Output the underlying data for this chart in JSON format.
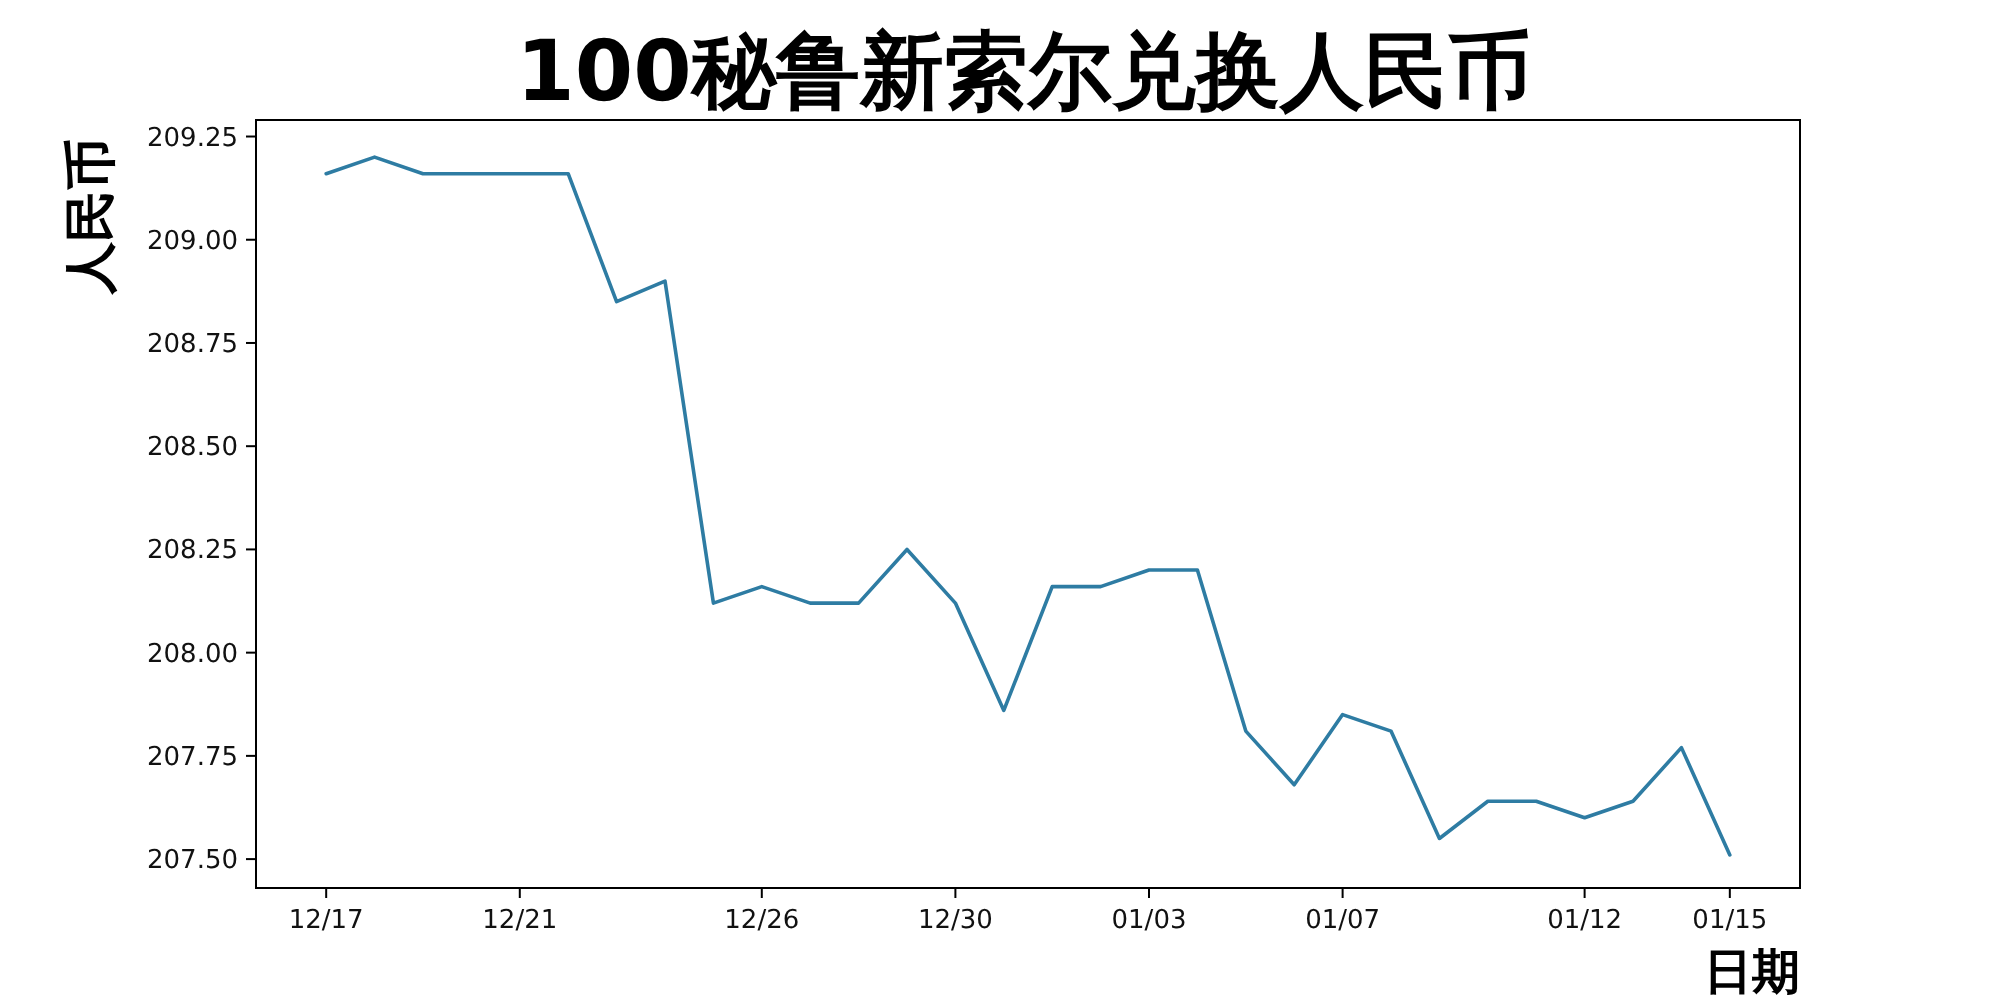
{
  "chart_data": {
    "type": "line",
    "title": "100秘鲁新索尔兑换人民币",
    "xlabel": "日期",
    "ylabel": "人民币",
    "categories": [
      "12/17",
      null,
      null,
      null,
      "12/21",
      null,
      null,
      null,
      null,
      "12/26",
      null,
      null,
      null,
      "12/30",
      null,
      null,
      null,
      "01/03",
      null,
      null,
      null,
      "01/07",
      null,
      null,
      null,
      null,
      "01/12",
      null,
      null,
      "01/15"
    ],
    "series": [
      {
        "color": "#2e7ca3",
        "values": [
          209.16,
          209.2,
          209.16,
          209.16,
          209.16,
          209.16,
          208.85,
          208.9,
          208.12,
          208.16,
          208.12,
          208.12,
          208.25,
          208.12,
          207.86,
          208.16,
          208.16,
          208.2,
          208.2,
          207.81,
          207.68,
          207.85,
          207.81,
          207.55,
          207.64,
          207.64,
          207.6,
          207.64,
          207.77,
          207.51
        ]
      }
    ],
    "ylim": [
      207.43,
      209.29
    ],
    "yticks": [
      {
        "value": 207.5,
        "label": "207.50"
      },
      {
        "value": 207.75,
        "label": "207.75"
      },
      {
        "value": 208,
        "label": "208.00"
      },
      {
        "value": 208.25,
        "label": "208.25"
      },
      {
        "value": 208.5,
        "label": "208.50"
      },
      {
        "value": 208.75,
        "label": "208.75"
      },
      {
        "value": 209,
        "label": "209.00"
      },
      {
        "value": 209.25,
        "label": "209.25"
      }
    ]
  }
}
